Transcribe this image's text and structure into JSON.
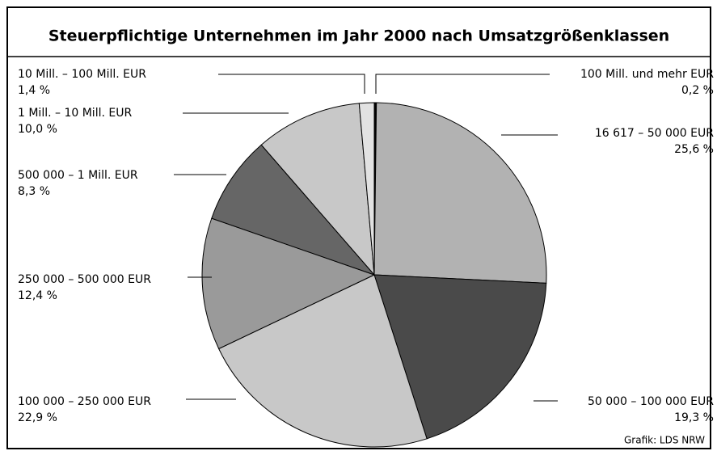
{
  "chart_data": {
    "type": "pie",
    "title": "Steuerpflichtige Unternehmen im Jahr 2000 nach Umsatzgrößenklassen",
    "categories": [
      "100 Mill. und mehr EUR",
      "16 617 – 50 000 EUR",
      "50 000 – 100 000 EUR",
      "100 000 – 250 000 EUR",
      "250 000 – 500 000 EUR",
      "500 000 – 1 Mill. EUR",
      "1 Mill. – 10 Mill. EUR",
      "10 Mill. – 100 Mill. EUR"
    ],
    "values": [
      0.2,
      25.6,
      19.3,
      22.9,
      12.4,
      8.3,
      10.0,
      1.4
    ],
    "value_labels": [
      "0,2 %",
      "25,6 %",
      "19,3 %",
      "22,9 %",
      "12,4 %",
      "8,3 %",
      "10,0 %",
      "1,4 %"
    ],
    "colors": [
      "#000000",
      "#b2b2b2",
      "#4a4a4a",
      "#c8c8c8",
      "#9a9a9a",
      "#666666",
      "#c8c8c8",
      "#e2e2e2"
    ],
    "source": "Grafik: LDS NRW"
  }
}
